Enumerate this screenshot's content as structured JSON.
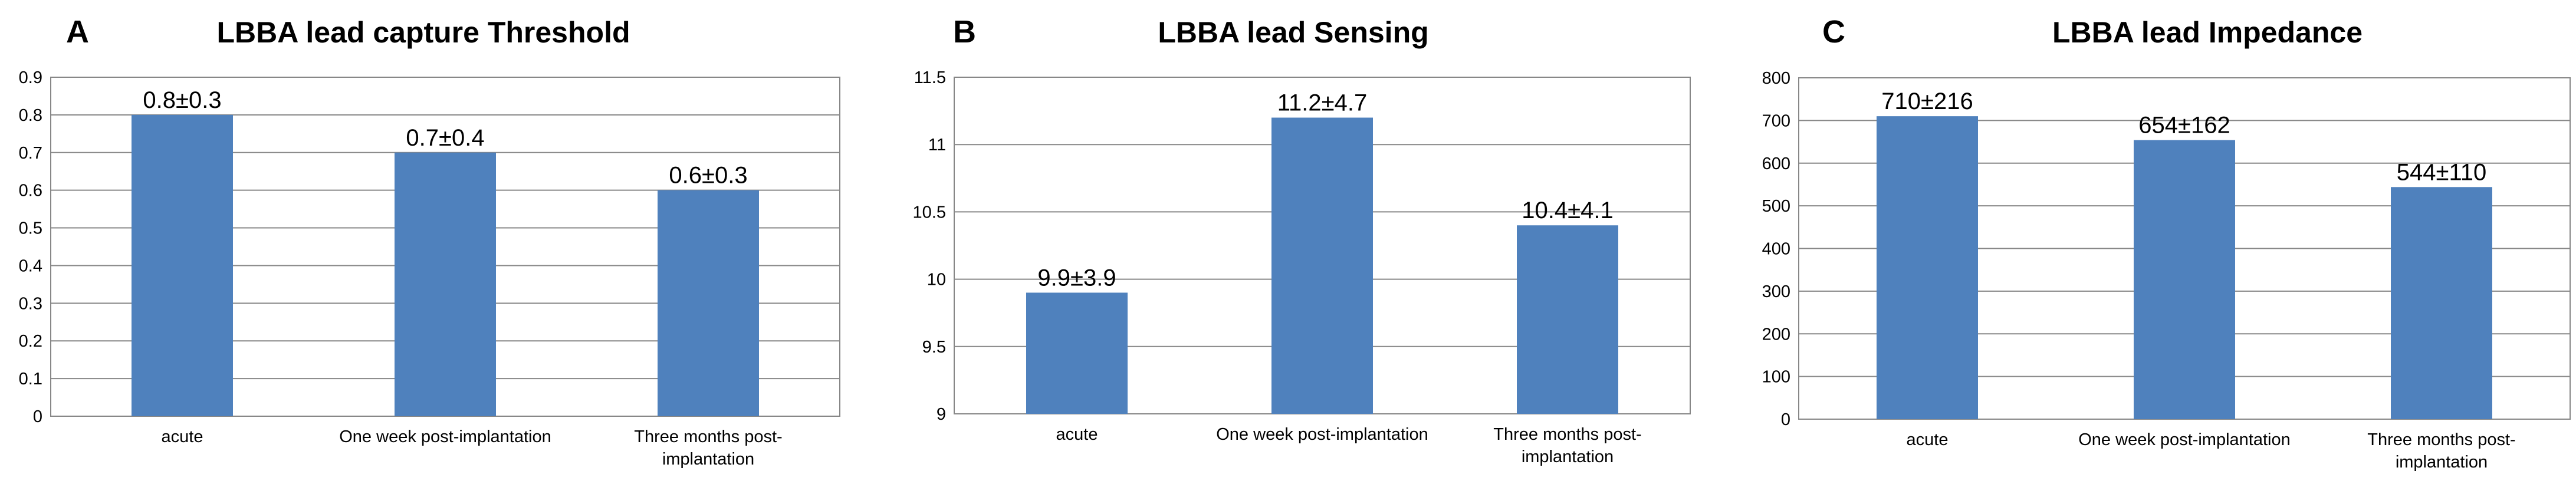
{
  "colors": {
    "bar": "#4f81bd",
    "grid": "#878787",
    "text": "#000000"
  },
  "chart_data": [
    {
      "type": "bar",
      "panel_letter": "A",
      "title": "LBBA lead capture Threshold",
      "categories": [
        [
          "acute"
        ],
        [
          "One week post-implantation"
        ],
        [
          "Three months post-",
          "implantation"
        ]
      ],
      "values": [
        0.8,
        0.7,
        0.6
      ],
      "data_labels": [
        "0.8±0.3",
        "0.7±0.4",
        "0.6±0.3"
      ],
      "ylim": [
        0,
        0.9
      ],
      "yticks": [
        "0",
        "0.1",
        "0.2",
        "0.3",
        "0.4",
        "0.5",
        "0.6",
        "0.7",
        "0.8",
        "0.9"
      ],
      "xlabel": "",
      "ylabel": "",
      "grid": true,
      "legend": "none"
    },
    {
      "type": "bar",
      "panel_letter": "B",
      "title": "LBBA lead Sensing",
      "categories": [
        [
          "acute"
        ],
        [
          "One week post-implantation"
        ],
        [
          "Three months post-",
          "implantation"
        ]
      ],
      "values": [
        9.9,
        11.2,
        10.4
      ],
      "data_labels": [
        "9.9±3.9",
        "11.2±4.7",
        "10.4±4.1"
      ],
      "ylim": [
        9,
        11.5
      ],
      "yticks": [
        "9",
        "9.5",
        "10",
        "10.5",
        "11",
        "11.5"
      ],
      "xlabel": "",
      "ylabel": "",
      "grid": true,
      "legend": "none"
    },
    {
      "type": "bar",
      "panel_letter": "C",
      "title": "LBBA lead Impedance",
      "categories": [
        [
          "acute"
        ],
        [
          "One week post-implantation"
        ],
        [
          "Three months post-",
          "implantation"
        ]
      ],
      "values": [
        710,
        654,
        544
      ],
      "data_labels": [
        "710±216",
        "654±162",
        "544±110"
      ],
      "ylim": [
        0,
        800
      ],
      "yticks": [
        "0",
        "100",
        "200",
        "300",
        "400",
        "500",
        "600",
        "700",
        "800"
      ],
      "xlabel": "",
      "ylabel": "",
      "grid": true,
      "legend": "none"
    }
  ]
}
